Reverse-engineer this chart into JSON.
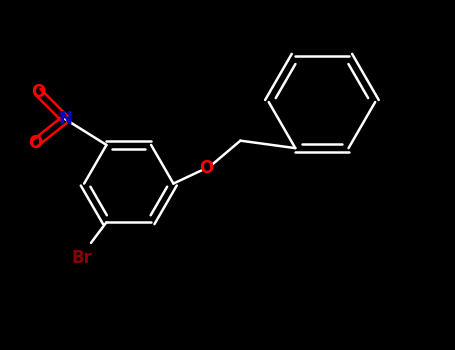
{
  "bg_color": "#000000",
  "bond_color": "#ffffff",
  "bond_lw": 1.8,
  "N_color": "#0000cd",
  "O_color": "#ff0000",
  "Br_color": "#8b0000",
  "label_fontsize": 12,
  "xlim": [
    -0.5,
    4.8
  ],
  "ylim": [
    -0.3,
    3.6
  ]
}
